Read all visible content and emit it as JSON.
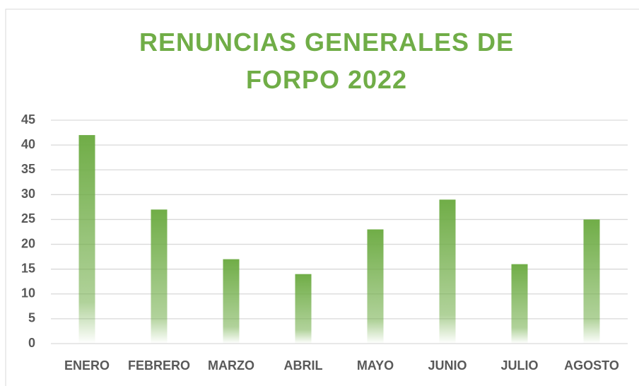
{
  "chart_data": {
    "type": "bar",
    "title": "RENUNCIAS GENERALES DE FORPO 2022",
    "categories": [
      "ENERO",
      "FEBRERO",
      "MARZO",
      "ABRIL",
      "MAYO",
      "JUNIO",
      "JULIO",
      "AGOSTO"
    ],
    "values": [
      42,
      27,
      17,
      14,
      23,
      29,
      16,
      25
    ],
    "color": "#70ad47",
    "ylim": [
      0,
      45
    ],
    "yticks": [
      0,
      5,
      10,
      15,
      20,
      25,
      30,
      35,
      40,
      45
    ],
    "grid": true
  }
}
